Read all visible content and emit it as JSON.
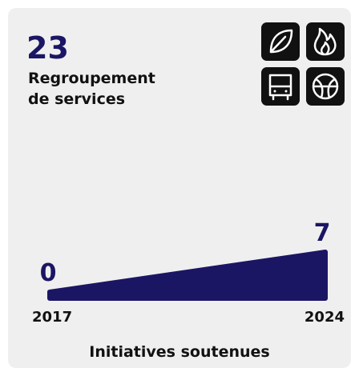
{
  "stat": {
    "value": "23",
    "label_lines": [
      "Regroupement",
      "de services"
    ]
  },
  "chart_data": {
    "type": "area",
    "title": "Initiatives soutenues",
    "categories": [
      "2017",
      "2024"
    ],
    "values": [
      0,
      7
    ],
    "color": "#1b1663",
    "ylim": [
      0,
      7
    ]
  }
}
